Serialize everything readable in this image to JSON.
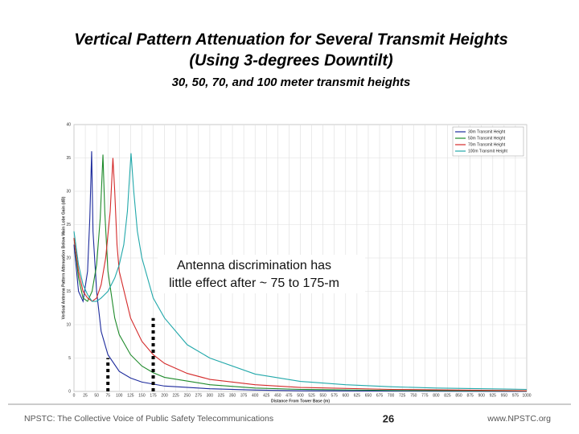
{
  "chart_data": {
    "type": "line",
    "title": "Vertical Pattern Attenuation for Several Transmit Heights",
    "title_line2": "(Using 3-degrees Downtilt)",
    "subtitle": "30, 50, 70, and 100 meter transmit heights",
    "xlabel": "Distance From Tower Base (m)",
    "ylabel": "Vertical Antenna Pattern Attenuation Below Main Lobe Gain (dB)",
    "xlim": [
      0,
      1000
    ],
    "ylim": [
      0,
      40
    ],
    "xticks": [
      0,
      25,
      50,
      75,
      100,
      125,
      150,
      175,
      200,
      225,
      250,
      275,
      300,
      325,
      350,
      375,
      400,
      425,
      450,
      475,
      500,
      525,
      550,
      575,
      600,
      625,
      650,
      675,
      700,
      725,
      750,
      775,
      800,
      825,
      850,
      875,
      900,
      925,
      950,
      975,
      1000
    ],
    "yticks": [
      0,
      5,
      10,
      15,
      20,
      25,
      30,
      35,
      40
    ],
    "grid": true,
    "legend": "top-right",
    "series": [
      {
        "name": "30m Transmit Height",
        "color": "#1c2a9c",
        "x": [
          0,
          10,
          20,
          30,
          35,
          39,
          42,
          50,
          60,
          75,
          100,
          125,
          150,
          200,
          300,
          400,
          500,
          700,
          1000
        ],
        "values": [
          22,
          15,
          13.5,
          18,
          26,
          36,
          24,
          15,
          9,
          5.5,
          3,
          2,
          1.4,
          0.8,
          0.4,
          0.2,
          0.1,
          0.05,
          0
        ]
      },
      {
        "name": "50m Transmit Height",
        "color": "#1d8a2a",
        "x": [
          0,
          10,
          20,
          30,
          40,
          50,
          58,
          64,
          68,
          75,
          90,
          100,
          125,
          150,
          175,
          200,
          300,
          400,
          500,
          700,
          1000
        ],
        "values": [
          23,
          17,
          14,
          13.5,
          15,
          19,
          26,
          35.5,
          27,
          18,
          11,
          8.5,
          5.5,
          3.8,
          2.8,
          2.1,
          1,
          0.5,
          0.3,
          0.15,
          0.05
        ]
      },
      {
        "name": "70m Transmit Height",
        "color": "#d42a2a",
        "x": [
          0,
          10,
          20,
          30,
          40,
          50,
          60,
          70,
          80,
          86,
          90,
          95,
          100,
          125,
          150,
          175,
          200,
          250,
          300,
          400,
          500,
          700,
          1000
        ],
        "values": [
          23,
          18,
          15,
          14,
          13.5,
          14,
          16,
          20,
          27,
          35,
          30,
          22,
          18,
          11,
          7.5,
          5.5,
          4.2,
          2.7,
          1.8,
          1,
          0.6,
          0.3,
          0.1
        ]
      },
      {
        "name": "100m Transmit Height",
        "color": "#22a8aa",
        "x": [
          0,
          10,
          20,
          30,
          40,
          50,
          60,
          75,
          90,
          100,
          110,
          118,
          126,
          132,
          140,
          150,
          175,
          200,
          250,
          300,
          400,
          500,
          600,
          700,
          800,
          1000
        ],
        "values": [
          24,
          19,
          16,
          14.5,
          13.5,
          13.5,
          14,
          15,
          17,
          19,
          22,
          27,
          35.7,
          30,
          24,
          20,
          14,
          11,
          7,
          5,
          2.6,
          1.5,
          1,
          0.7,
          0.5,
          0.3
        ]
      }
    ],
    "markers": [
      {
        "x": 75,
        "y": 5
      },
      {
        "x": 175,
        "y": 11
      }
    ],
    "annotation_line1": "Antenna discrimination has",
    "annotation_line2": "little effect after ~ 75  to 175-m",
    "footer_left": "NPSTC:  The Collective Voice of Public Safety Telecommunications",
    "footer_page": "26",
    "footer_right": "www.NPSTC.org"
  }
}
